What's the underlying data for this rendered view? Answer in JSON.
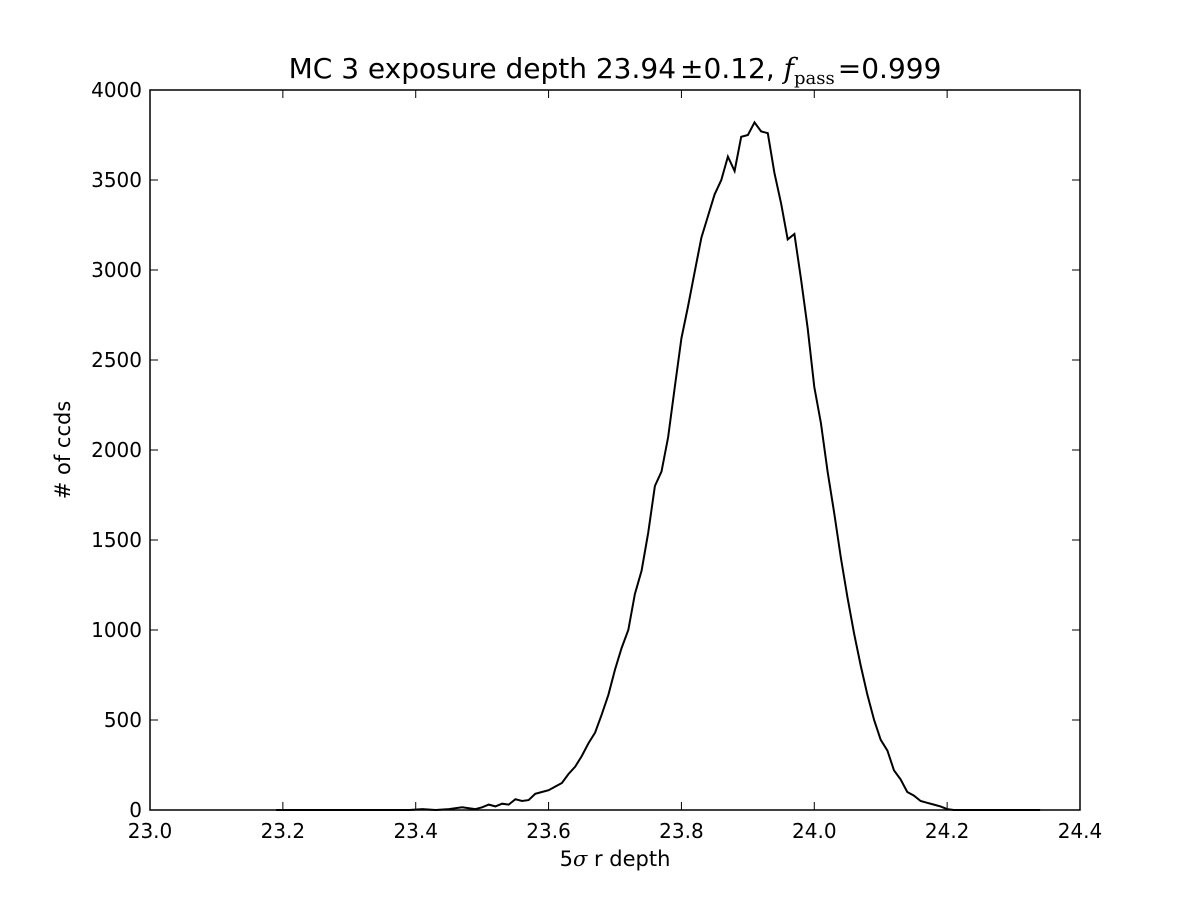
{
  "chart_data": {
    "type": "line",
    "title": {
      "prefix": "MC 3 exposure depth 23.94",
      "pm": "±",
      "err": "0.12, ",
      "f": "f",
      "sub": "pass",
      "eq": "=",
      "value": "0.999"
    },
    "xlabel": {
      "five": "5",
      "sigma": "σ",
      "rest": " r depth"
    },
    "ylabel": "# of ccds",
    "xlim": [
      23.0,
      24.4
    ],
    "ylim": [
      0,
      4000
    ],
    "xticks": [
      "23.0",
      "23.2",
      "23.4",
      "23.6",
      "23.8",
      "24.0",
      "24.2",
      "24.4"
    ],
    "yticks": [
      "0",
      "500",
      "1000",
      "1500",
      "2000",
      "2500",
      "3000",
      "3500",
      "4000"
    ],
    "grid": false,
    "series": [
      {
        "color": "#000000",
        "x": [
          23.19,
          23.25,
          23.3,
          23.33,
          23.36,
          23.39,
          23.41,
          23.43,
          23.45,
          23.47,
          23.48,
          23.49,
          23.5,
          23.51,
          23.52,
          23.53,
          23.54,
          23.55,
          23.56,
          23.57,
          23.58,
          23.59,
          23.6,
          23.61,
          23.62,
          23.63,
          23.64,
          23.65,
          23.66,
          23.67,
          23.68,
          23.69,
          23.7,
          23.71,
          23.72,
          23.73,
          23.74,
          23.75,
          23.76,
          23.77,
          23.78,
          23.79,
          23.8,
          23.81,
          23.82,
          23.83,
          23.84,
          23.85,
          23.86,
          23.87,
          23.88,
          23.89,
          23.9,
          23.91,
          23.92,
          23.93,
          23.94,
          23.95,
          23.96,
          23.97,
          23.98,
          23.99,
          24.0,
          24.01,
          24.02,
          24.03,
          24.04,
          24.05,
          24.06,
          24.07,
          24.08,
          24.09,
          24.1,
          24.11,
          24.12,
          24.13,
          24.14,
          24.15,
          24.16,
          24.17,
          24.18,
          24.19,
          24.2,
          24.21,
          24.22,
          24.23,
          24.24,
          24.25,
          24.26,
          24.27,
          24.28,
          24.29,
          24.3,
          24.32,
          24.34
        ],
        "y": [
          0,
          0,
          0,
          0,
          0,
          0,
          5,
          0,
          5,
          15,
          10,
          5,
          15,
          30,
          20,
          35,
          30,
          60,
          50,
          55,
          90,
          100,
          110,
          130,
          150,
          200,
          240,
          300,
          370,
          430,
          530,
          640,
          780,
          900,
          1000,
          1200,
          1330,
          1540,
          1800,
          1880,
          2070,
          2350,
          2620,
          2800,
          2990,
          3180,
          3300,
          3420,
          3500,
          3630,
          3550,
          3740,
          3750,
          3820,
          3770,
          3760,
          3540,
          3370,
          3170,
          3200,
          2950,
          2680,
          2350,
          2150,
          1880,
          1650,
          1400,
          1180,
          980,
          800,
          640,
          500,
          390,
          330,
          220,
          170,
          100,
          80,
          50,
          40,
          30,
          20,
          5,
          0,
          0,
          0,
          0,
          0,
          0,
          0,
          0,
          0,
          0,
          0,
          0
        ]
      }
    ]
  }
}
